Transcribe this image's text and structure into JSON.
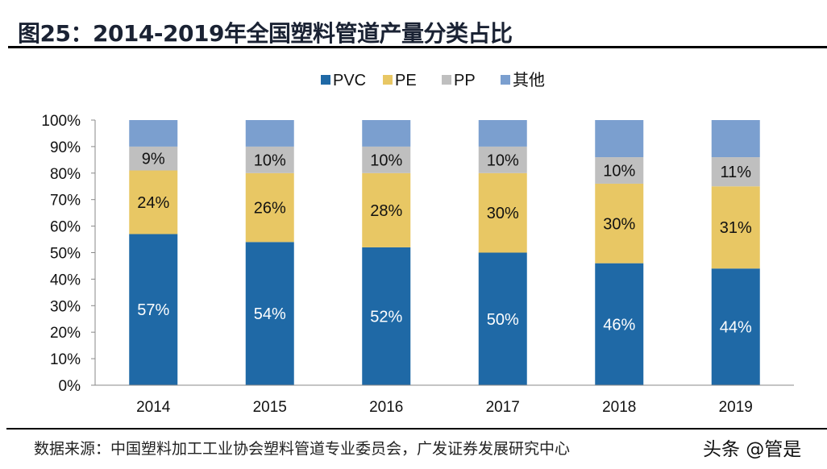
{
  "title": "图25：2014-2019年全国塑料管道产量分类占比",
  "source": "数据来源：中国塑料加工工业协会塑料管道专业委员会，广发证券发展研究中心",
  "watermark": "头条 @管是",
  "chart_data": {
    "type": "bar",
    "stacked": true,
    "categories": [
      "2014",
      "2015",
      "2016",
      "2017",
      "2018",
      "2019"
    ],
    "series": [
      {
        "name": "PVC",
        "color": "#1f69a6",
        "values": [
          57,
          54,
          52,
          50,
          46,
          44
        ],
        "labels": [
          "57%",
          "54%",
          "52%",
          "50%",
          "46%",
          "44%"
        ]
      },
      {
        "name": "PE",
        "color": "#e8c764",
        "values": [
          24,
          26,
          28,
          30,
          30,
          31
        ],
        "labels": [
          "24%",
          "26%",
          "28%",
          "30%",
          "30%",
          "31%"
        ]
      },
      {
        "name": "PP",
        "color": "#bfbfbf",
        "values": [
          9,
          10,
          10,
          10,
          10,
          11
        ],
        "labels": [
          "9%",
          "10%",
          "10%",
          "10%",
          "10%",
          "11%"
        ]
      },
      {
        "name": "其他",
        "color": "#7b9fcf",
        "values": [
          10,
          10,
          10,
          10,
          14,
          14
        ],
        "labels": []
      }
    ],
    "yticks": [
      "0%",
      "10%",
      "20%",
      "30%",
      "40%",
      "50%",
      "60%",
      "70%",
      "80%",
      "90%",
      "100%"
    ],
    "ylim": [
      0,
      100
    ],
    "grid": false,
    "legend": "top"
  }
}
